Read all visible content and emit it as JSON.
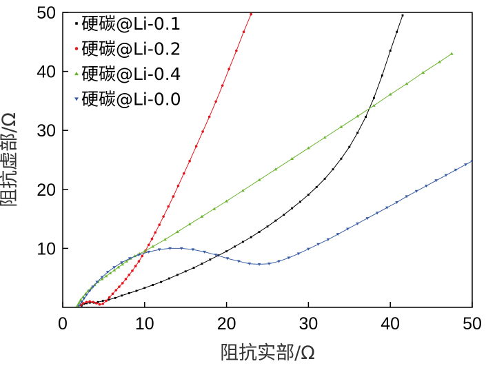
{
  "chart_data": {
    "type": "line",
    "xlabel": "阻抗实部/Ω",
    "ylabel": "阻抗虚部/Ω",
    "xlim": [
      0,
      50
    ],
    "ylim": [
      0,
      50
    ],
    "x_ticks": [
      "0",
      "10",
      "20",
      "30",
      "40",
      "50"
    ],
    "y_ticks": [
      "10",
      "20",
      "30",
      "40",
      "50"
    ],
    "grid": false,
    "legend_position": "top-left",
    "series": [
      {
        "name": "硬碳@Li-0.1",
        "color": "#000000",
        "marker": "square",
        "points": [
          [
            2.3,
            0.3
          ],
          [
            2.6,
            0.6
          ],
          [
            2.9,
            0.7
          ],
          [
            3.3,
            0.8
          ],
          [
            3.8,
            0.8
          ],
          [
            4.3,
            0.9
          ],
          [
            4.9,
            1.1
          ],
          [
            5.6,
            1.3
          ],
          [
            6.4,
            1.6
          ],
          [
            7.2,
            2.0
          ],
          [
            8.1,
            2.4
          ],
          [
            9.0,
            2.8
          ],
          [
            10.0,
            3.3
          ],
          [
            11.0,
            3.8
          ],
          [
            12.0,
            4.3
          ],
          [
            13.0,
            4.9
          ],
          [
            14.0,
            5.5
          ],
          [
            15.0,
            6.1
          ],
          [
            16.0,
            6.7
          ],
          [
            17.0,
            7.4
          ],
          [
            18.0,
            8.1
          ],
          [
            19.0,
            8.8
          ],
          [
            20.0,
            9.5
          ],
          [
            21.0,
            10.3
          ],
          [
            22.0,
            11.1
          ],
          [
            23.0,
            11.9
          ],
          [
            24.0,
            12.8
          ],
          [
            25.0,
            13.7
          ],
          [
            26.0,
            14.7
          ],
          [
            27.0,
            15.7
          ],
          [
            28.0,
            16.8
          ],
          [
            29.0,
            17.9
          ],
          [
            30.0,
            19.1
          ],
          [
            31.0,
            20.4
          ],
          [
            32.0,
            21.8
          ],
          [
            33.0,
            23.4
          ],
          [
            34.0,
            25.2
          ],
          [
            35.0,
            27.2
          ],
          [
            36.0,
            29.6
          ],
          [
            37.0,
            32.3
          ],
          [
            38.0,
            35.5
          ],
          [
            39.0,
            39.3
          ],
          [
            40.0,
            43.5
          ],
          [
            40.8,
            46.7
          ],
          [
            41.5,
            49.5
          ]
        ]
      },
      {
        "name": "硬碳@Li-0.2",
        "color": "#e8141c",
        "marker": "circle",
        "points": [
          [
            2.2,
            0.4
          ],
          [
            2.5,
            0.7
          ],
          [
            2.9,
            0.9
          ],
          [
            3.3,
            1.0
          ],
          [
            3.7,
            0.9
          ],
          [
            4.1,
            0.7
          ],
          [
            4.5,
            0.5
          ],
          [
            4.9,
            0.6
          ],
          [
            5.3,
            1.1
          ],
          [
            5.7,
            1.7
          ],
          [
            6.1,
            2.3
          ],
          [
            6.5,
            2.9
          ],
          [
            6.9,
            3.5
          ],
          [
            7.3,
            4.1
          ],
          [
            7.7,
            4.8
          ],
          [
            8.1,
            5.5
          ],
          [
            8.5,
            6.2
          ],
          [
            8.9,
            7.0
          ],
          [
            9.3,
            7.8
          ],
          [
            9.7,
            8.7
          ],
          [
            10.1,
            9.6
          ],
          [
            10.5,
            10.6
          ],
          [
            10.9,
            11.6
          ],
          [
            11.3,
            12.7
          ],
          [
            11.8,
            14.0
          ],
          [
            12.3,
            15.4
          ],
          [
            12.9,
            17.1
          ],
          [
            13.5,
            18.8
          ],
          [
            14.1,
            20.6
          ],
          [
            14.8,
            22.7
          ],
          [
            15.5,
            24.8
          ],
          [
            16.3,
            27.3
          ],
          [
            17.1,
            29.8
          ],
          [
            17.9,
            32.3
          ],
          [
            18.7,
            34.9
          ],
          [
            19.5,
            37.6
          ],
          [
            20.3,
            40.4
          ],
          [
            21.2,
            43.5
          ],
          [
            22.1,
            46.7
          ],
          [
            23.0,
            49.7
          ]
        ]
      },
      {
        "name": "硬碳@Li-0.4",
        "color": "#6ab42e",
        "marker": "triangle-up",
        "points": [
          [
            1.8,
            0.3
          ],
          [
            2.0,
            0.8
          ],
          [
            2.2,
            1.3
          ],
          [
            2.5,
            1.8
          ],
          [
            2.8,
            2.3
          ],
          [
            3.1,
            2.8
          ],
          [
            3.5,
            3.3
          ],
          [
            3.9,
            3.8
          ],
          [
            4.3,
            4.3
          ],
          [
            4.8,
            4.8
          ],
          [
            5.3,
            5.3
          ],
          [
            5.8,
            5.8
          ],
          [
            6.3,
            6.3
          ],
          [
            6.8,
            6.8
          ],
          [
            7.3,
            7.3
          ],
          [
            7.8,
            7.8
          ],
          [
            8.3,
            8.3
          ],
          [
            8.8,
            8.7
          ],
          [
            9.4,
            9.1
          ],
          [
            10.0,
            9.5
          ],
          [
            11.0,
            10.3
          ],
          [
            12.5,
            11.5
          ],
          [
            14.0,
            12.8
          ],
          [
            15.5,
            14.1
          ],
          [
            17.0,
            15.4
          ],
          [
            18.5,
            16.7
          ],
          [
            20.0,
            18.0
          ],
          [
            22.0,
            19.8
          ],
          [
            24.0,
            21.6
          ],
          [
            26.0,
            23.4
          ],
          [
            28.0,
            25.2
          ],
          [
            30.0,
            27.0
          ],
          [
            32.0,
            28.8
          ],
          [
            34.0,
            30.6
          ],
          [
            36.0,
            32.4
          ],
          [
            38.0,
            34.2
          ],
          [
            40.0,
            36.1
          ],
          [
            42.0,
            37.9
          ],
          [
            44.0,
            39.8
          ],
          [
            46.0,
            41.6
          ],
          [
            47.5,
            43.0
          ]
        ]
      },
      {
        "name": "硬碳@Li-0.0",
        "color": "#3a5ea5",
        "marker": "triangle-down",
        "points": [
          [
            2.0,
            0.3
          ],
          [
            2.3,
            0.9
          ],
          [
            2.6,
            1.5
          ],
          [
            2.9,
            2.1
          ],
          [
            3.3,
            2.8
          ],
          [
            3.7,
            3.5
          ],
          [
            4.2,
            4.3
          ],
          [
            4.8,
            5.1
          ],
          [
            5.5,
            6.0
          ],
          [
            6.3,
            6.8
          ],
          [
            7.2,
            7.6
          ],
          [
            8.2,
            8.3
          ],
          [
            9.3,
            8.9
          ],
          [
            10.5,
            9.4
          ],
          [
            11.8,
            9.8
          ],
          [
            13.1,
            10.0
          ],
          [
            14.5,
            10.0
          ],
          [
            15.9,
            9.8
          ],
          [
            17.3,
            9.4
          ],
          [
            18.7,
            8.9
          ],
          [
            20.1,
            8.3
          ],
          [
            21.5,
            7.8
          ],
          [
            22.8,
            7.4
          ],
          [
            24.0,
            7.3
          ],
          [
            25.2,
            7.4
          ],
          [
            26.4,
            7.8
          ],
          [
            27.6,
            8.4
          ],
          [
            28.8,
            9.1
          ],
          [
            30.0,
            9.9
          ],
          [
            31.2,
            10.7
          ],
          [
            32.4,
            11.5
          ],
          [
            33.6,
            12.4
          ],
          [
            34.8,
            13.3
          ],
          [
            36.0,
            14.2
          ],
          [
            37.2,
            15.1
          ],
          [
            38.4,
            16.0
          ],
          [
            39.6,
            16.9
          ],
          [
            40.8,
            17.8
          ],
          [
            42.0,
            18.8
          ],
          [
            43.2,
            19.7
          ],
          [
            44.4,
            20.6
          ],
          [
            45.6,
            21.5
          ],
          [
            46.8,
            22.4
          ],
          [
            48.0,
            23.3
          ],
          [
            49.2,
            24.2
          ],
          [
            50.0,
            24.8
          ]
        ]
      }
    ]
  }
}
